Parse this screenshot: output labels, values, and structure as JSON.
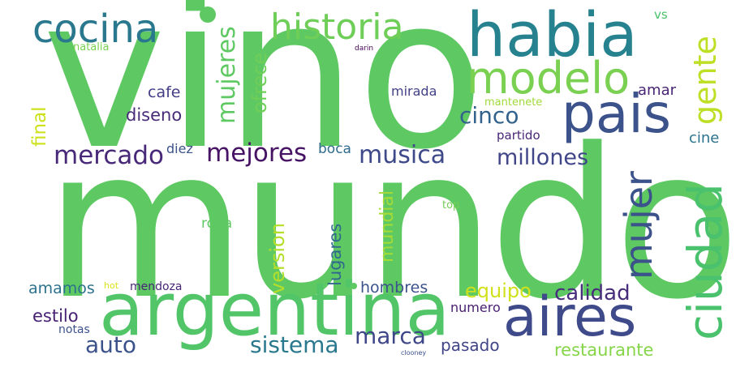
{
  "words": [
    {
      "id": "vino",
      "text": "vino",
      "color": "#5ec962"
    },
    {
      "id": "mundo",
      "text": "mundo",
      "color": "#5ec962"
    },
    {
      "id": "argentina",
      "text": "argentina",
      "color": "#52c569"
    },
    {
      "id": "habia",
      "text": "habia",
      "color": "#26828e"
    },
    {
      "id": "pais",
      "text": "pais",
      "color": "#3b528b"
    },
    {
      "id": "aires",
      "text": "aires",
      "color": "#3e4a89"
    },
    {
      "id": "modelo",
      "text": "modelo",
      "color": "#7ad151"
    },
    {
      "id": "ciudad",
      "text": "ciudad",
      "color": "#4ac16d"
    },
    {
      "id": "mujer",
      "text": "mujer",
      "color": "#3b528b"
    },
    {
      "id": "gente",
      "text": "gente",
      "color": "#bddf26"
    },
    {
      "id": "cocina",
      "text": "cocina",
      "color": "#2a788e"
    },
    {
      "id": "historia",
      "text": "historia",
      "color": "#6ece58"
    },
    {
      "id": "mercado",
      "text": "mercado",
      "color": "#482878"
    },
    {
      "id": "mejores",
      "text": "mejores",
      "color": "#471365"
    },
    {
      "id": "musica",
      "text": "musica",
      "color": "#3e4989"
    },
    {
      "id": "millones",
      "text": "millones",
      "color": "#404688"
    },
    {
      "id": "cinco",
      "text": "cinco",
      "color": "#33638d"
    },
    {
      "id": "calidad",
      "text": "calidad",
      "color": "#472d7b"
    },
    {
      "id": "equipo",
      "text": "equipo",
      "color": "#d0e11c"
    },
    {
      "id": "sistema",
      "text": "sistema",
      "color": "#2a788e"
    },
    {
      "id": "marca",
      "text": "marca",
      "color": "#3f4788"
    },
    {
      "id": "auto",
      "text": "auto",
      "color": "#3b528b"
    },
    {
      "id": "mujeres",
      "text": "mujeres",
      "color": "#5ec962"
    },
    {
      "id": "ofrece",
      "text": "ofrece",
      "color": "#6ece58"
    },
    {
      "id": "version",
      "text": "version",
      "color": "#b5de2b"
    },
    {
      "id": "mundial",
      "text": "mundial",
      "color": "#a5db36"
    },
    {
      "id": "lugares",
      "text": "lugares",
      "color": "#31688e"
    },
    {
      "id": "final",
      "text": "final",
      "color": "#cde11d"
    },
    {
      "id": "restaurante",
      "text": "restaurante",
      "color": "#86d549"
    },
    {
      "id": "pasado",
      "text": "pasado",
      "color": "#414487"
    },
    {
      "id": "hombres",
      "text": "hombres",
      "color": "#3b528b"
    },
    {
      "id": "amamos",
      "text": "amamos",
      "color": "#2c728e"
    },
    {
      "id": "estilo",
      "text": "estilo",
      "color": "#482173"
    },
    {
      "id": "diseno",
      "text": "diseno",
      "color": "#472c7a"
    },
    {
      "id": "cafe",
      "text": "cafe",
      "color": "#433e85"
    },
    {
      "id": "boca",
      "text": "boca",
      "color": "#2f6c8e"
    },
    {
      "id": "diez",
      "text": "diez",
      "color": "#3b528b"
    },
    {
      "id": "cine",
      "text": "cine",
      "color": "#2c738e"
    },
    {
      "id": "amar",
      "text": "amar",
      "color": "#482475"
    },
    {
      "id": "mirada",
      "text": "mirada",
      "color": "#424186"
    },
    {
      "id": "partido",
      "text": "partido",
      "color": "#482677"
    },
    {
      "id": "ropa",
      "text": "ropa",
      "color": "#5ec962"
    },
    {
      "id": "numero",
      "text": "numero",
      "color": "#481f70"
    },
    {
      "id": "notas",
      "text": "notas",
      "color": "#3b528b"
    },
    {
      "id": "mendoza",
      "text": "mendoza",
      "color": "#482576"
    },
    {
      "id": "vs",
      "text": "vs",
      "color": "#4ac16d"
    },
    {
      "id": "natalia",
      "text": "natalia",
      "color": "#7ad151"
    },
    {
      "id": "mantenete",
      "text": "mantenete",
      "color": "#a0da39"
    },
    {
      "id": "top",
      "text": "top",
      "color": "#75d054"
    },
    {
      "id": "hot",
      "text": "hot",
      "color": "#dde318"
    },
    {
      "id": "darin",
      "text": "darin",
      "color": "#440154"
    },
    {
      "id": "clooney",
      "text": "clooney",
      "color": "#3b528b"
    }
  ]
}
